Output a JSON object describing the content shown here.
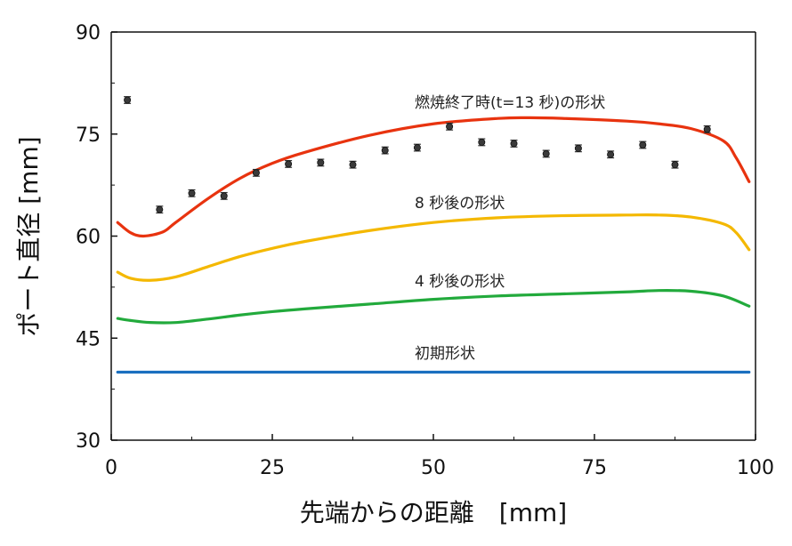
{
  "chart_data": {
    "type": "line",
    "xlabel": "先端からの距離　[mm]",
    "ylabel": "ポート直径 [mm]",
    "xlim": [
      0,
      100
    ],
    "ylim": [
      30,
      90
    ],
    "xticks": [
      0,
      25,
      50,
      75,
      100
    ],
    "yticks": [
      30,
      45,
      60,
      75,
      90
    ],
    "grid": false,
    "series": [
      {
        "name": "初期形状",
        "color": "#1a6fbf",
        "x": [
          1,
          99
        ],
        "y": [
          40,
          40
        ]
      },
      {
        "name": "4 秒後の形状",
        "color": "#22aa3c",
        "x": [
          1,
          3,
          6,
          10,
          15,
          20,
          25,
          30,
          40,
          50,
          60,
          70,
          80,
          85,
          90,
          95,
          99
        ],
        "y": [
          47.9,
          47.6,
          47.3,
          47.3,
          47.8,
          48.4,
          48.9,
          49.3,
          50.0,
          50.7,
          51.2,
          51.5,
          51.8,
          52.0,
          51.9,
          51.2,
          49.7
        ]
      },
      {
        "name": "8 秒後の形状",
        "color": "#f4b800",
        "x": [
          1,
          3,
          6,
          10,
          15,
          20,
          25,
          30,
          40,
          50,
          60,
          70,
          80,
          85,
          90,
          95,
          97,
          99
        ],
        "y": [
          54.7,
          53.8,
          53.5,
          54.0,
          55.5,
          57.0,
          58.2,
          59.2,
          60.8,
          62.0,
          62.7,
          63.0,
          63.1,
          63.1,
          62.8,
          61.8,
          60.5,
          58.0
        ]
      },
      {
        "name": "燃焼終了時(t=13 秒)の形状",
        "color": "#e8330f",
        "x": [
          1,
          3,
          5,
          8,
          10,
          15,
          20,
          25,
          30,
          40,
          50,
          60,
          65,
          70,
          80,
          85,
          90,
          95,
          97,
          99
        ],
        "y": [
          62.0,
          60.5,
          60.0,
          60.6,
          62.0,
          65.5,
          68.5,
          70.7,
          72.3,
          74.8,
          76.5,
          77.3,
          77.4,
          77.3,
          76.9,
          76.5,
          75.8,
          74.0,
          71.5,
          68.0
        ]
      }
    ],
    "measured": {
      "x": [
        2.5,
        7.5,
        12.5,
        17.5,
        22.5,
        27.5,
        32.5,
        37.5,
        42.5,
        47.5,
        52.5,
        57.5,
        62.5,
        67.5,
        72.5,
        77.5,
        82.5,
        87.5,
        92.5
      ],
      "y": [
        80.0,
        63.9,
        66.3,
        65.9,
        69.3,
        70.6,
        70.8,
        70.5,
        72.6,
        73.0,
        76.1,
        73.8,
        73.6,
        72.1,
        72.9,
        72.0,
        73.4,
        70.5,
        75.7
      ],
      "err": [
        0.5,
        0.5,
        0.5,
        0.5,
        0.5,
        0.5,
        0.5,
        0.5,
        0.5,
        0.5,
        0.5,
        0.5,
        0.5,
        0.5,
        0.5,
        0.5,
        0.5,
        0.5,
        0.5
      ]
    },
    "labels": {
      "initial": "初期形状",
      "four_sec": "4 秒後の形状",
      "eight_sec": "8 秒後の形状",
      "final": "燃焼終了時(t=13 秒)の形状"
    }
  }
}
